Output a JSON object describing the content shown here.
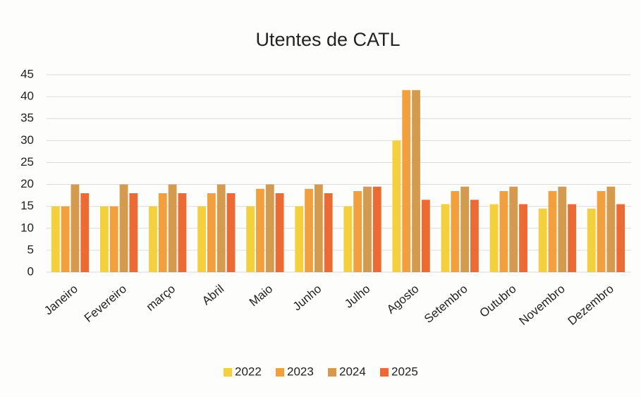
{
  "chart_data": {
    "type": "bar",
    "title": "Utentes de CATL",
    "categories": [
      "Janeiro",
      "Fevereiro",
      "março",
      "Abril",
      "Maio",
      "Junho",
      "Julho",
      "Agosto",
      "Setembro",
      "Outubro",
      "Novembro",
      "Dezembro"
    ],
    "series": [
      {
        "name": "2022",
        "color": "#f3d03c",
        "values": [
          15,
          15,
          15,
          15,
          15,
          15,
          15,
          30,
          15.5,
          15.5,
          14.5,
          14.5
        ]
      },
      {
        "name": "2023",
        "color": "#f2a03e",
        "values": [
          15,
          15,
          18,
          18,
          19,
          19,
          18.5,
          41.5,
          18.5,
          18.5,
          18.5,
          18.5
        ]
      },
      {
        "name": "2024",
        "color": "#d49a4e",
        "values": [
          20,
          20,
          20,
          20,
          20,
          20,
          19.5,
          41.5,
          19.5,
          19.5,
          19.5,
          19.5
        ]
      },
      {
        "name": "2025",
        "color": "#ec6b34",
        "values": [
          18,
          18,
          18,
          18,
          18,
          18,
          19.5,
          16.5,
          16.5,
          15.5,
          15.5,
          15.5
        ]
      }
    ],
    "ylim": [
      0,
      45
    ],
    "yticks": [
      0,
      5,
      10,
      15,
      20,
      25,
      30,
      35,
      40,
      45
    ],
    "grid": true,
    "legend": "bottom"
  }
}
